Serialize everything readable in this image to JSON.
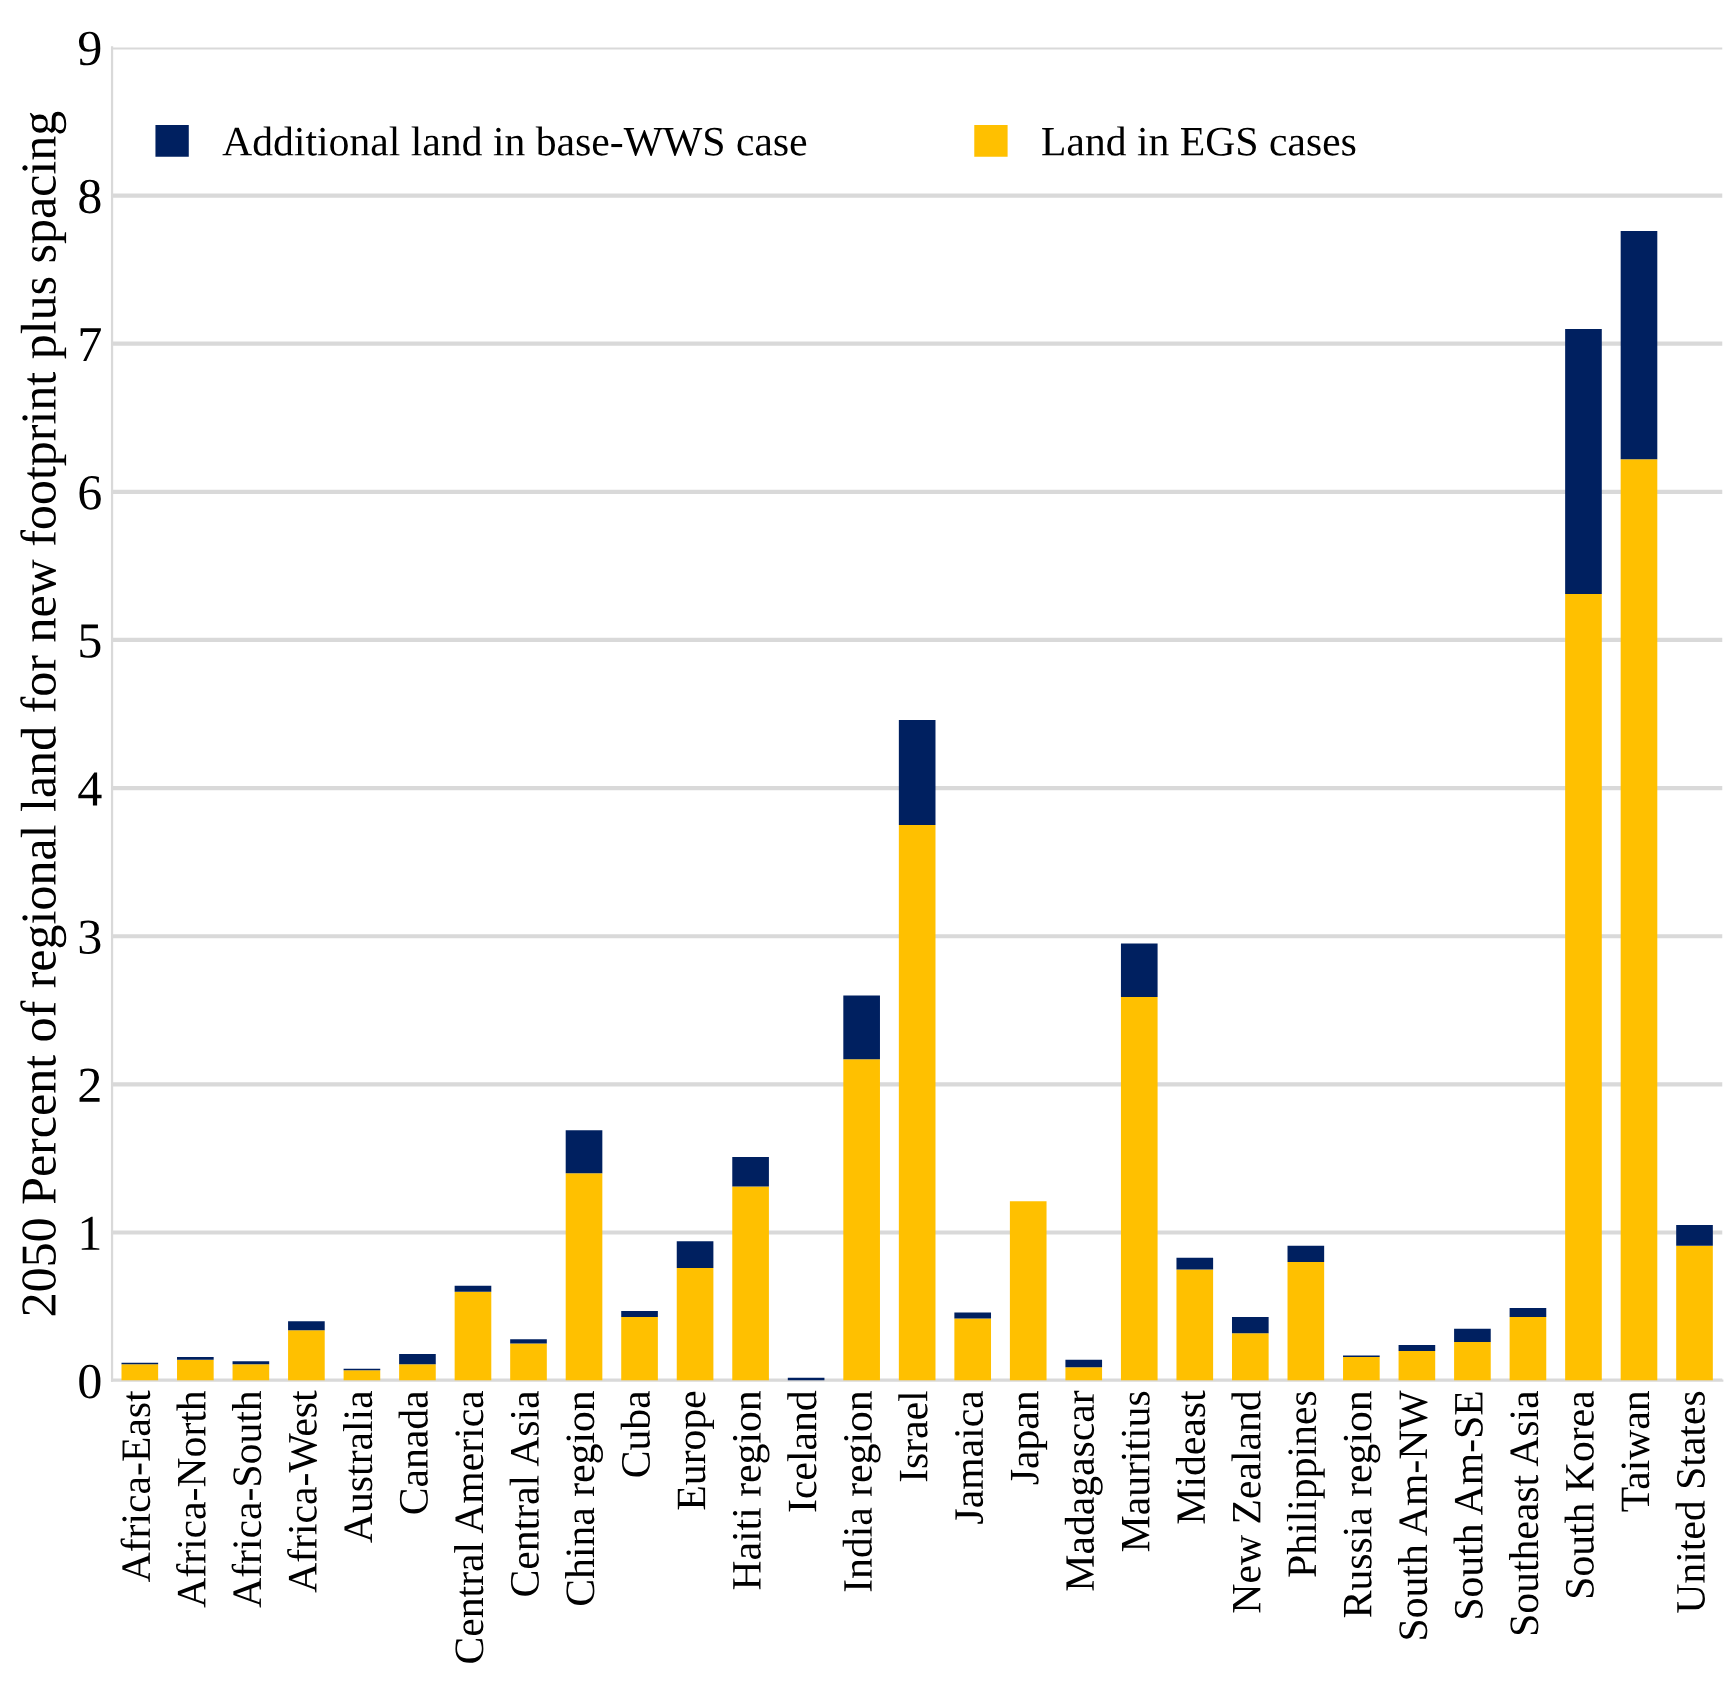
{
  "chart_data": {
    "type": "bar",
    "stacked": true,
    "ylabel": "2050 Percent of regional land for new footprint plus spacing",
    "categories": [
      "Africa-East",
      "Africa-North",
      "Africa-South",
      "Africa-West",
      "Australia",
      "Canada",
      "Central America",
      "Central Asia",
      "China region",
      "Cuba",
      "Europe",
      "Haiti region",
      "Iceland",
      "India region",
      "Israel",
      "Jamaica",
      "Japan",
      "Madagascar",
      "Mauritius",
      "Mideast",
      "New Zealand",
      "Philippines",
      "Russia region",
      "South Am-NW",
      "South Am-SE",
      "Southeast Asia",
      "South Korea",
      "Taiwan",
      "United States"
    ],
    "series": [
      {
        "name": "Land in EGS cases",
        "color": "#ffc000",
        "values": [
          0.11,
          0.14,
          0.11,
          0.34,
          0.07,
          0.11,
          0.6,
          0.25,
          1.4,
          0.43,
          0.76,
          1.31,
          0,
          2.17,
          3.75,
          0.42,
          1.21,
          0.09,
          2.59,
          0.75,
          0.32,
          0.8,
          0.16,
          0.2,
          0.26,
          0.43,
          5.31,
          6.22,
          0.91
        ]
      },
      {
        "name": "Additional land in base-WWS case",
        "color": "#002060",
        "values": [
          0.01,
          0.02,
          0.02,
          0.06,
          0.01,
          0.07,
          0.04,
          0.03,
          0.29,
          0.04,
          0.18,
          0.2,
          0.02,
          0.43,
          0.71,
          0.04,
          0,
          0.05,
          0.36,
          0.08,
          0.11,
          0.11,
          0.01,
          0.04,
          0.09,
          0.06,
          1.79,
          1.54,
          0.14
        ]
      }
    ],
    "ylim": [
      0,
      9
    ],
    "yticks": [
      0,
      1,
      2,
      3,
      4,
      5,
      6,
      7,
      8,
      9
    ],
    "grid": "y",
    "legend": "top"
  }
}
